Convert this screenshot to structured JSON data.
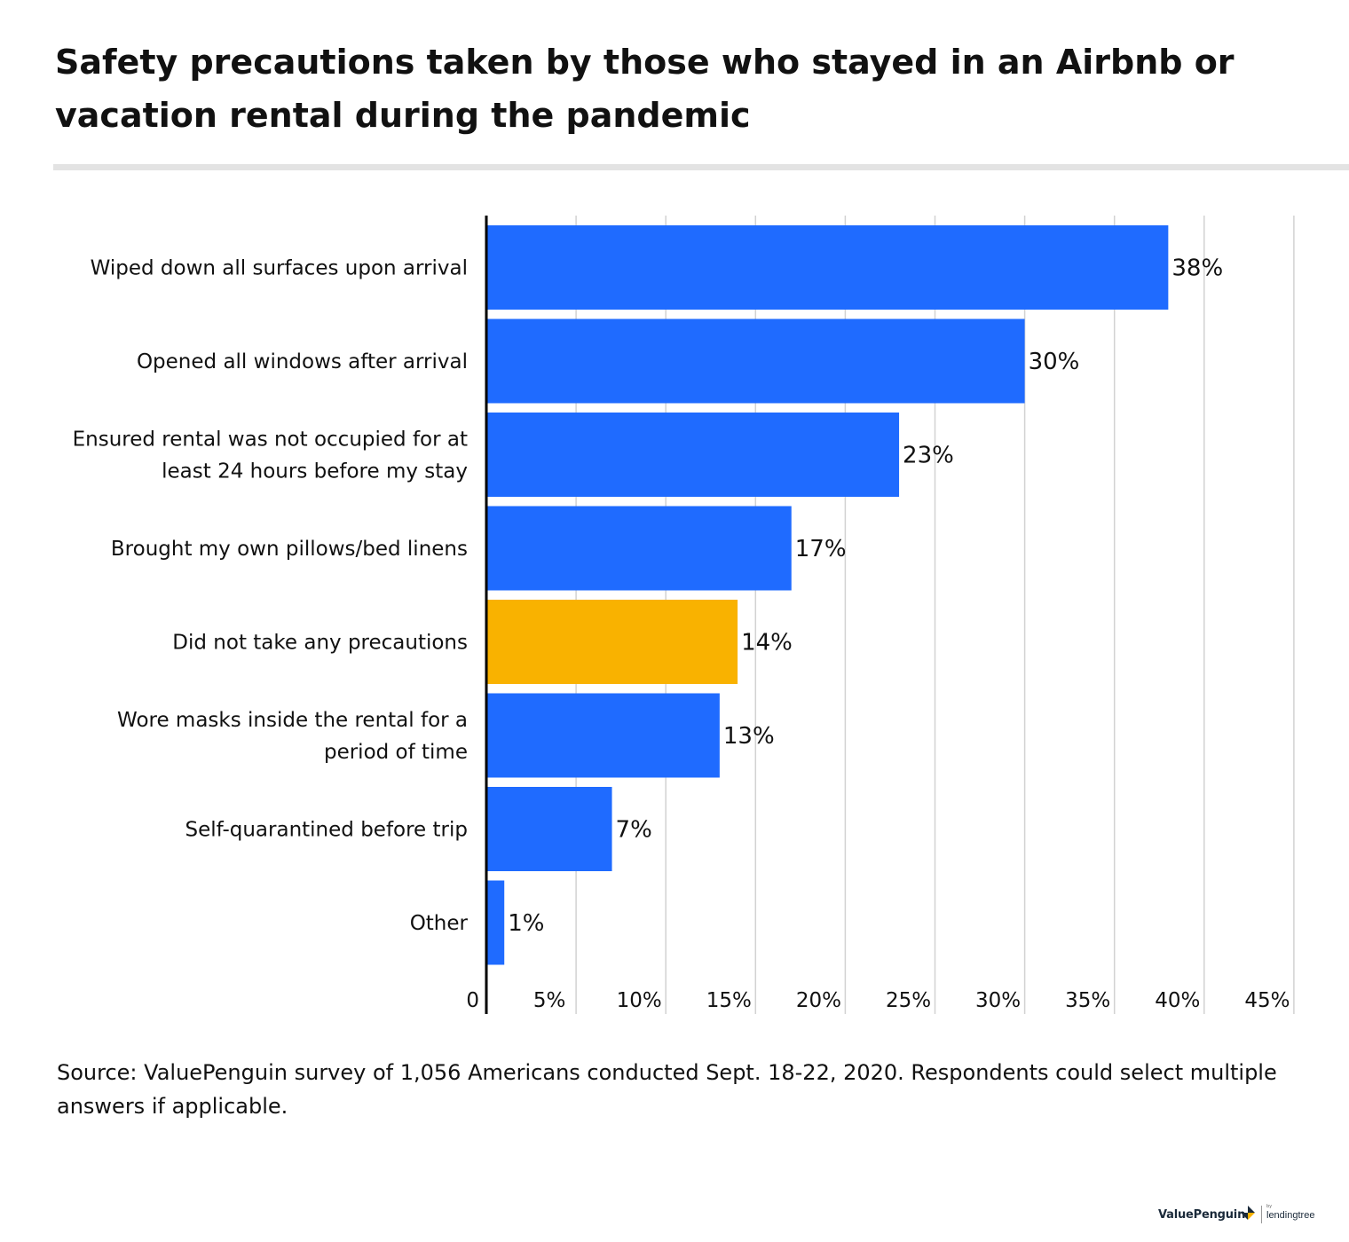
{
  "title": "Safety precautions taken by those who stayed in an Airbnb or vacation rental during the pandemic",
  "source": "Source: ValuePenguin survey of 1,056 Americans conducted Sept. 18-22, 2020. Respondents could select multiple answers if applicable.",
  "brand": {
    "left": "ValuePenguin",
    "by": "by",
    "right": "lendingtree"
  },
  "colors": {
    "primary": "#1f6bff",
    "highlight": "#f9b200",
    "grid": "#d2d2d2",
    "axis": "#000000",
    "text": "#111111"
  },
  "chart_data": {
    "type": "bar",
    "orientation": "horizontal",
    "title": "Safety precautions taken by those who stayed in an Airbnb or vacation rental during the pandemic",
    "xlabel": "",
    "ylabel": "",
    "categories": [
      [
        "Wiped down all surfaces upon arrival"
      ],
      [
        "Opened all windows after arrival"
      ],
      [
        "Ensured rental was not occupied for at",
        "least 24 hours before my stay"
      ],
      [
        "Brought my own pillows/bed linens"
      ],
      [
        "Did not take any precautions"
      ],
      [
        "Wore masks inside the rental for a",
        "period of time"
      ],
      [
        "Self-quarantined before trip"
      ],
      [
        "Other"
      ]
    ],
    "values": [
      38,
      30,
      23,
      17,
      14,
      13,
      7,
      1
    ],
    "value_labels": [
      "38%",
      "30%",
      "23%",
      "17%",
      "14%",
      "13%",
      "7%",
      "1%"
    ],
    "highlight_index": 4,
    "xlim": [
      0,
      45
    ],
    "xticks": [
      0,
      5,
      10,
      15,
      20,
      25,
      30,
      35,
      40,
      45
    ],
    "xtick_labels": [
      "0",
      "5%",
      "10%",
      "15%",
      "20%",
      "25%",
      "30%",
      "35%",
      "40%",
      "45%"
    ],
    "grid": true,
    "legend": "none"
  }
}
